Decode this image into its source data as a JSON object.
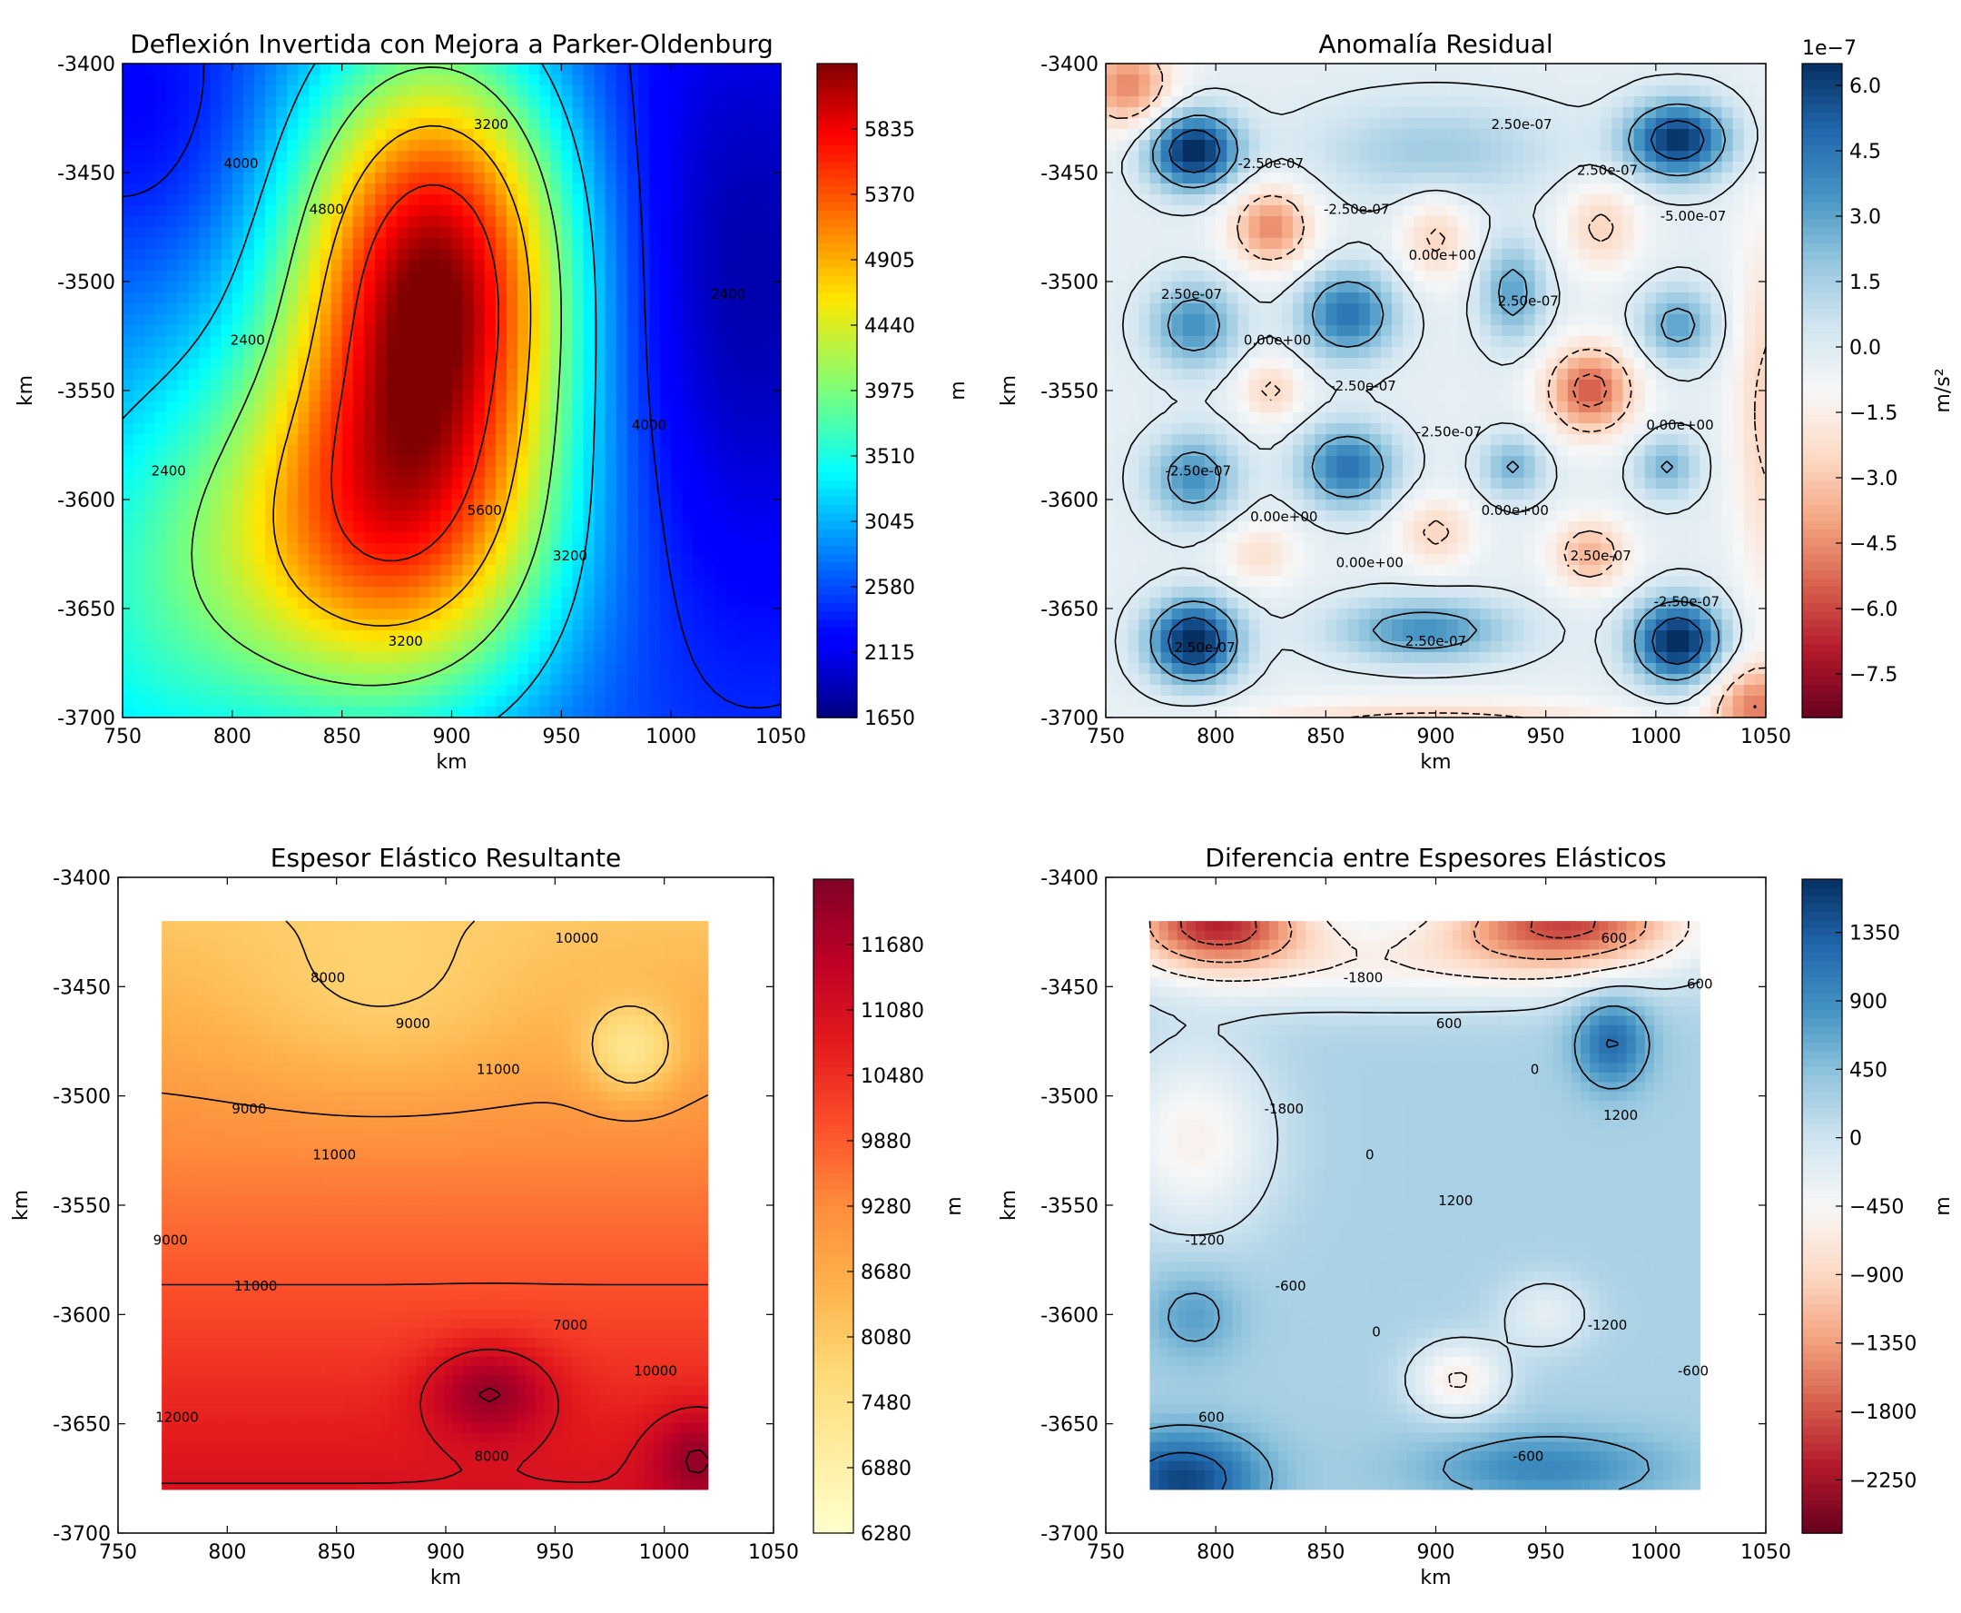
{
  "chart_data": [
    {
      "type": "heatmap",
      "title": "Deflexión Invertida con Mejora a Parker-Oldenburg",
      "xlabel": "km",
      "ylabel": "km",
      "xlim": [
        750,
        1050
      ],
      "ylim": [
        -3700,
        -3400
      ],
      "x_ticks": [
        "750",
        "800",
        "850",
        "900",
        "950",
        "1000",
        "1050"
      ],
      "y_ticks": [
        "-3400",
        "-3450",
        "-3500",
        "-3550",
        "-3600",
        "-3650",
        "-3700"
      ],
      "colormap": "jet",
      "colorbar": {
        "label": "m",
        "range": [
          1650,
          6300
        ],
        "ticks": [
          "5835",
          "5370",
          "4905",
          "4440",
          "3975",
          "3510",
          "3045",
          "2580",
          "2115",
          "1650"
        ],
        "offset": ""
      },
      "contour_labels": [
        "4000",
        "5600",
        "2400",
        "3200",
        "4000",
        "4800",
        "3200",
        "2400",
        "3200",
        "2400"
      ],
      "field": {
        "base": 2600,
        "blobs": [
          {
            "x": 893,
            "y": -3495,
            "sx": 45,
            "sy": 70,
            "a": 3500
          },
          {
            "x": 870,
            "y": -3615,
            "sx": 55,
            "sy": 60,
            "a": 2500
          },
          {
            "x": 760,
            "y": -3650,
            "sx": 50,
            "sy": 80,
            "a": 800
          },
          {
            "x": 760,
            "y": -3420,
            "sx": 40,
            "sy": 50,
            "a": -400
          },
          {
            "x": 1030,
            "y": -3500,
            "sx": 60,
            "sy": 120,
            "a": -800
          }
        ]
      }
    },
    {
      "type": "heatmap",
      "title": "Anomalía Residual",
      "xlabel": "km",
      "ylabel": "km",
      "xlim": [
        750,
        1050
      ],
      "ylim": [
        -3700,
        -3400
      ],
      "x_ticks": [
        "750",
        "800",
        "850",
        "900",
        "950",
        "1000",
        "1050"
      ],
      "y_ticks": [
        "-3400",
        "-3450",
        "-3500",
        "-3550",
        "-3600",
        "-3650",
        "-3700"
      ],
      "colormap": "RdBu",
      "colorbar": {
        "label": "m/s²",
        "range": [
          -8.5,
          6.5
        ],
        "ticks": [
          "6.0",
          "4.5",
          "3.0",
          "1.5",
          "0.0",
          "−1.5",
          "−3.0",
          "−4.5",
          "−6.0",
          "−7.5"
        ],
        "offset": "1e−7"
      },
      "contour_labels": [
        "-2.50e-07",
        "0.00e+00",
        "2.50e-07",
        "2.50e-07",
        "0.00e+00",
        "-2.50e-07",
        "2.50e-07",
        "0.00e+00",
        "2.50e-07",
        "-2.50e-07",
        "0.00e+00",
        "-2.50e-07",
        "-2.50e-07",
        "2.50e-07",
        "0.00e+00",
        "2.50e-07",
        "2.50e-07",
        "-2.50e-07",
        "-5.00e-07",
        "0.00e+00"
      ],
      "field": {
        "base": -0.3,
        "blobs": [
          {
            "x": 790,
            "y": -3440,
            "sx": 14,
            "sy": 12,
            "a": 7.5
          },
          {
            "x": 1010,
            "y": -3435,
            "sx": 16,
            "sy": 12,
            "a": 7.0
          },
          {
            "x": 790,
            "y": -3665,
            "sx": 14,
            "sy": 13,
            "a": 7.5
          },
          {
            "x": 1010,
            "y": -3665,
            "sx": 14,
            "sy": 13,
            "a": 7.5
          },
          {
            "x": 860,
            "y": -3515,
            "sx": 15,
            "sy": 14,
            "a": 5.0
          },
          {
            "x": 860,
            "y": -3585,
            "sx": 15,
            "sy": 13,
            "a": 5.0
          },
          {
            "x": 790,
            "y": -3520,
            "sx": 14,
            "sy": 14,
            "a": 4.0
          },
          {
            "x": 790,
            "y": -3590,
            "sx": 14,
            "sy": 14,
            "a": 4.0
          },
          {
            "x": 895,
            "y": -3660,
            "sx": 28,
            "sy": 10,
            "a": 4.0
          },
          {
            "x": 935,
            "y": -3505,
            "sx": 10,
            "sy": 16,
            "a": 3.5
          },
          {
            "x": 1010,
            "y": -3520,
            "sx": 12,
            "sy": 12,
            "a": 3.5
          },
          {
            "x": 935,
            "y": -3585,
            "sx": 10,
            "sy": 10,
            "a": 3.0
          },
          {
            "x": 1005,
            "y": -3585,
            "sx": 10,
            "sy": 10,
            "a": 3.0
          },
          {
            "x": 900,
            "y": -3440,
            "sx": 40,
            "sy": 16,
            "a": 2.0
          },
          {
            "x": 825,
            "y": -3475,
            "sx": 13,
            "sy": 13,
            "a": -4.5
          },
          {
            "x": 970,
            "y": -3550,
            "sx": 14,
            "sy": 14,
            "a": -5.5
          },
          {
            "x": 825,
            "y": -3550,
            "sx": 10,
            "sy": 10,
            "a": -2.5
          },
          {
            "x": 900,
            "y": -3480,
            "sx": 11,
            "sy": 14,
            "a": -2.5
          },
          {
            "x": 975,
            "y": -3475,
            "sx": 12,
            "sy": 14,
            "a": -2.5
          },
          {
            "x": 900,
            "y": -3615,
            "sx": 12,
            "sy": 11,
            "a": -2.5
          },
          {
            "x": 970,
            "y": -3625,
            "sx": 12,
            "sy": 11,
            "a": -3.5
          },
          {
            "x": 820,
            "y": -3625,
            "sx": 12,
            "sy": 10,
            "a": -2.0
          },
          {
            "x": 900,
            "y": -3710,
            "sx": 60,
            "sy": 10,
            "a": -4.5
          },
          {
            "x": 760,
            "y": -3410,
            "sx": 14,
            "sy": 14,
            "a": -4.5
          },
          {
            "x": 1045,
            "y": -3695,
            "sx": 14,
            "sy": 14,
            "a": -4.5
          },
          {
            "x": 1050,
            "y": -3560,
            "sx": 10,
            "sy": 60,
            "a": -2.5
          }
        ]
      }
    },
    {
      "type": "heatmap",
      "title": "Espesor Elástico Resultante",
      "xlabel": "km",
      "ylabel": "km",
      "xlim": [
        750,
        1050
      ],
      "ylim": [
        -3700,
        -3400
      ],
      "x_ticks": [
        "750",
        "800",
        "850",
        "900",
        "950",
        "1000",
        "1050"
      ],
      "y_ticks": [
        "-3400",
        "-3450",
        "-3500",
        "-3550",
        "-3600",
        "-3650",
        "-3700"
      ],
      "colormap": "YlOrRd",
      "colorbar": {
        "label": "m",
        "range": [
          6280,
          12280
        ],
        "ticks": [
          "11680",
          "11080",
          "10480",
          "9880",
          "9280",
          "8680",
          "8080",
          "7480",
          "6880",
          "6280"
        ],
        "offset": ""
      },
      "contour_labels": [
        "8000",
        "7000",
        "9000",
        "8000",
        "9000",
        "9000",
        "10000",
        "11000",
        "10000",
        "11000",
        "11000",
        "12000"
      ],
      "extent": {
        "x": [
          770,
          1020
        ],
        "y": [
          -3680,
          -3420
        ]
      },
      "field": {
        "base": 9600,
        "gradient": -11.0,
        "blobs": [
          {
            "x": 985,
            "y": -3480,
            "sx": 15,
            "sy": 15,
            "a": -1500
          },
          {
            "x": 920,
            "y": -3635,
            "sx": 20,
            "sy": 15,
            "a": 1500
          },
          {
            "x": 1015,
            "y": -3665,
            "sx": 15,
            "sy": 15,
            "a": 1200
          },
          {
            "x": 870,
            "y": -3460,
            "sx": 50,
            "sy": 30,
            "a": -600
          }
        ]
      }
    },
    {
      "type": "heatmap",
      "title": "Diferencia entre Espesores Elásticos",
      "xlabel": "km",
      "ylabel": "km",
      "xlim": [
        750,
        1050
      ],
      "ylim": [
        -3700,
        -3400
      ],
      "x_ticks": [
        "750",
        "800",
        "850",
        "900",
        "950",
        "1000",
        "1050"
      ],
      "y_ticks": [
        "-3400",
        "-3450",
        "-3500",
        "-3550",
        "-3600",
        "-3650",
        "-3700"
      ],
      "colormap": "RdBu",
      "colorbar": {
        "label": "m",
        "range": [
          -2600,
          1700
        ],
        "ticks": [
          "1350",
          "900",
          "450",
          "0",
          "−450",
          "−900",
          "−1350",
          "−1800",
          "−2250"
        ],
        "offset": ""
      },
      "contour_labels": [
        "-1800",
        "-1200",
        "-1800",
        "-600",
        "-1200",
        "600",
        "-600",
        "0",
        "600",
        "-600",
        "0",
        "600",
        "1200",
        "600",
        "0",
        "1200"
      ],
      "extent": {
        "x": [
          770,
          1020
        ],
        "y": [
          -3680,
          -3420
        ]
      },
      "field": {
        "base": 250,
        "blobs": [
          {
            "x": 800,
            "y": -3420,
            "sx": 30,
            "sy": 15,
            "a": -2200
          },
          {
            "x": 960,
            "y": -3420,
            "sx": 40,
            "sy": 15,
            "a": -2000
          },
          {
            "x": 880,
            "y": -3440,
            "sx": 80,
            "sy": 15,
            "a": -700
          },
          {
            "x": 790,
            "y": -3520,
            "sx": 25,
            "sy": 30,
            "a": -800
          },
          {
            "x": 980,
            "y": -3475,
            "sx": 12,
            "sy": 15,
            "a": 1000
          },
          {
            "x": 910,
            "y": -3630,
            "sx": 15,
            "sy": 12,
            "a": -900
          },
          {
            "x": 950,
            "y": -3600,
            "sx": 15,
            "sy": 12,
            "a": -500
          },
          {
            "x": 785,
            "y": -3675,
            "sx": 25,
            "sy": 15,
            "a": 1300
          },
          {
            "x": 950,
            "y": -3670,
            "sx": 40,
            "sy": 12,
            "a": 700
          },
          {
            "x": 790,
            "y": -3600,
            "sx": 15,
            "sy": 15,
            "a": 500
          }
        ]
      }
    }
  ]
}
